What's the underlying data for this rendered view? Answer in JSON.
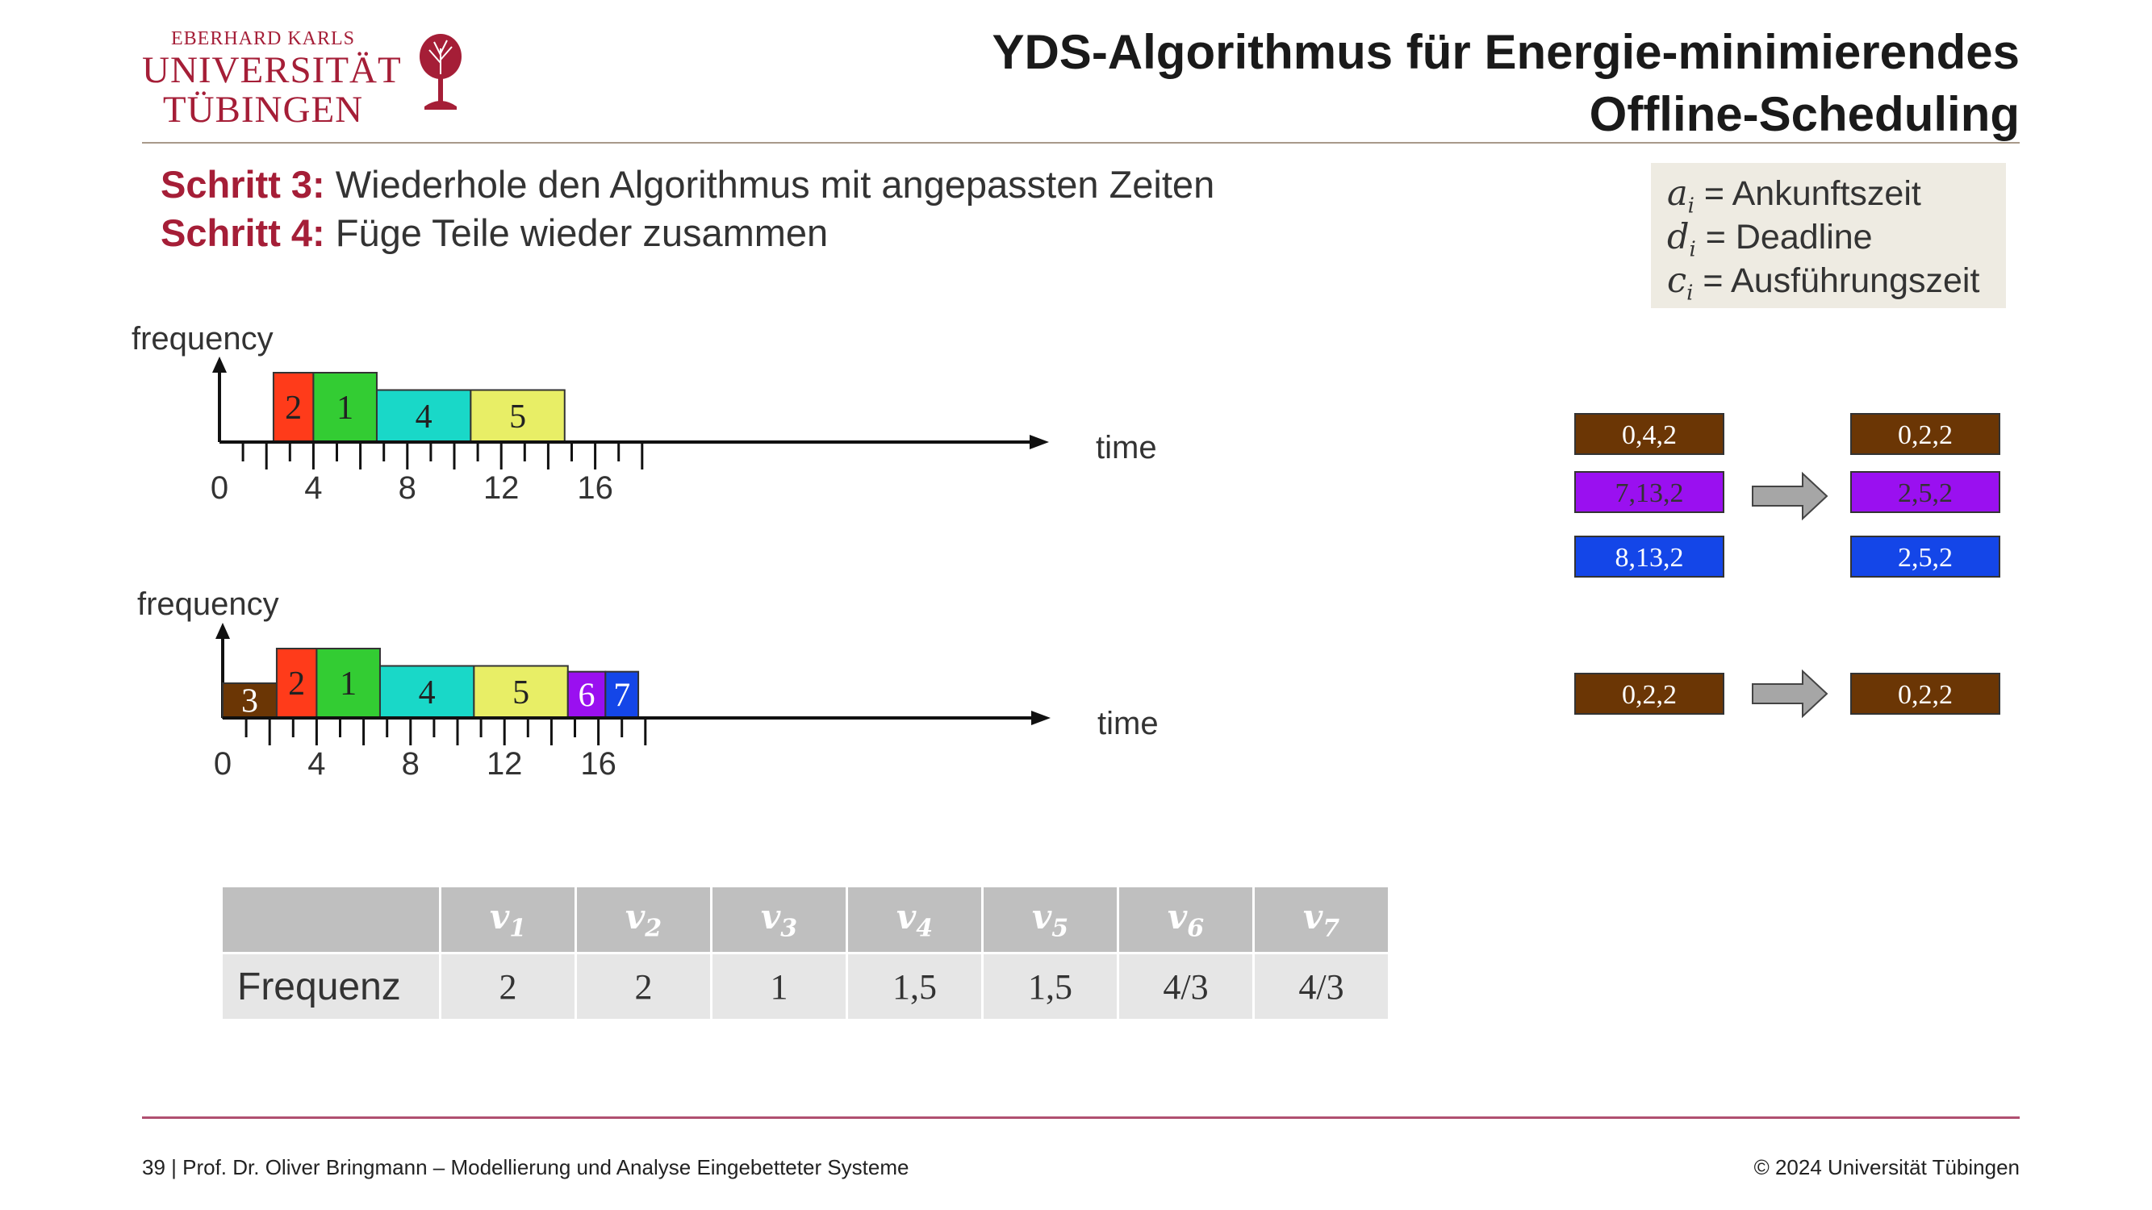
{
  "logo": {
    "line1": "EBERHARD KARLS",
    "line2": "UNIVERSITÄT",
    "line3": "TÜBINGEN"
  },
  "title": {
    "line1": "YDS-Algorithmus für Energie-minimierendes",
    "line2": "Offline-Scheduling"
  },
  "steps": [
    {
      "label": "Schritt 3:",
      "text": " Wiederhole den Algorithmus mit angepassten Zeiten"
    },
    {
      "label": "Schritt 4:",
      "text": " Füge Teile wieder zusammen"
    }
  ],
  "legend": [
    {
      "var": "a",
      "sub": "i",
      "text": " = Ankunftszeit"
    },
    {
      "var": "d",
      "sub": "i",
      "text": " = Deadline"
    },
    {
      "var": "c",
      "sub": "i",
      "text": " = Ausführungszeit"
    }
  ],
  "diagram_top": {
    "ylabel": "frequency",
    "xlabel": "time",
    "ticks": [
      "0",
      "4",
      "8",
      "12",
      "16"
    ],
    "jobs": [
      {
        "label": "2",
        "start": 2.3,
        "end": 4,
        "freq": 2,
        "color": "#ff3b1a"
      },
      {
        "label": "1",
        "start": 4,
        "end": 6.7,
        "freq": 2,
        "color": "#33cc33"
      },
      {
        "label": "4",
        "start": 6.7,
        "end": 10.7,
        "freq": 1.5,
        "color": "#19d8c8"
      },
      {
        "label": "5",
        "start": 10.7,
        "end": 14.7,
        "freq": 1.5,
        "color": "#e8ee66"
      }
    ]
  },
  "diagram_bottom": {
    "ylabel": "frequency",
    "xlabel": "time",
    "ticks": [
      "0",
      "4",
      "8",
      "12",
      "16"
    ],
    "jobs": [
      {
        "label": "3",
        "start": 0,
        "end": 2.3,
        "freq": 1,
        "color": "#6b3605"
      },
      {
        "label": "2",
        "start": 2.3,
        "end": 4,
        "freq": 2,
        "color": "#ff3b1a"
      },
      {
        "label": "1",
        "start": 4,
        "end": 6.7,
        "freq": 2,
        "color": "#33cc33"
      },
      {
        "label": "4",
        "start": 6.7,
        "end": 10.7,
        "freq": 1.5,
        "color": "#19d8c8"
      },
      {
        "label": "5",
        "start": 10.7,
        "end": 14.7,
        "freq": 1.5,
        "color": "#e8ee66"
      },
      {
        "label": "6",
        "start": 14.7,
        "end": 16.3,
        "freq": 1.3333,
        "color": "#9a10f0"
      },
      {
        "label": "7",
        "start": 16.3,
        "end": 17.7,
        "freq": 1.3333,
        "color": "#1446e8"
      }
    ]
  },
  "transforms": [
    {
      "from": "0,4,2",
      "to": "0,2,2",
      "color": "#6b3605"
    },
    {
      "from": "7,13,2",
      "to": "2,5,2",
      "color": "#9a10f0"
    },
    {
      "from": "8,13,2",
      "to": "2,5,2",
      "color": "#1446e8"
    },
    {
      "from": "0,2,2",
      "to": "0,2,2",
      "color": "#6b3605"
    }
  ],
  "table": {
    "headers": [
      "",
      "v",
      "v",
      "v",
      "v",
      "v",
      "v",
      "v"
    ],
    "header_subs": [
      "",
      "1",
      "2",
      "3",
      "4",
      "5",
      "6",
      "7"
    ],
    "row_label": "Frequenz",
    "values": [
      "2",
      "2",
      "1",
      "1,5",
      "1,5",
      "4/3",
      "4/3"
    ]
  },
  "footer": {
    "left": "39 | Prof. Dr. Oliver Bringmann – Modellierung und Analyse Eingebetteter Systeme",
    "right": "© 2024 Universität Tübingen"
  }
}
